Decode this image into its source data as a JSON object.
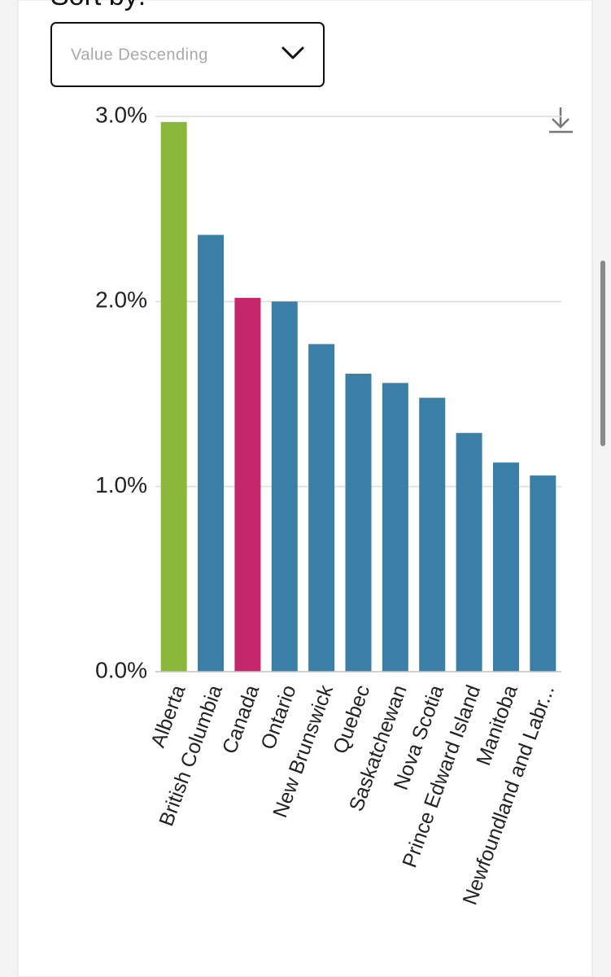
{
  "sort_label": "Sort by:",
  "dropdown": "Value Descending",
  "chart_data": {
    "type": "bar",
    "categories": [
      "Alberta",
      "British Columbia",
      "Canada",
      "Ontario",
      "New Brunswick",
      "Quebec",
      "Saskatchewan",
      "Nova Scotia",
      "Prince Edward Island",
      "Manitoba",
      "Newfoundland and Labr..."
    ],
    "values": [
      2.97,
      2.36,
      2.02,
      2.0,
      1.77,
      1.61,
      1.56,
      1.48,
      1.29,
      1.13,
      1.06
    ],
    "colors": [
      "#8cb83a",
      "#3a7fa8",
      "#c4276c",
      "#3a7fa8",
      "#3a7fa8",
      "#3a7fa8",
      "#3a7fa8",
      "#3a7fa8",
      "#3a7fa8",
      "#3a7fa8",
      "#3a7fa8"
    ],
    "ylim": [
      0,
      3
    ],
    "yticks": [
      {
        "value": 0,
        "label": "0.0%"
      },
      {
        "value": 1,
        "label": "1.0%"
      },
      {
        "value": 2,
        "label": "2.0%"
      },
      {
        "value": 3,
        "label": "3.0%"
      }
    ],
    "grid": true
  }
}
